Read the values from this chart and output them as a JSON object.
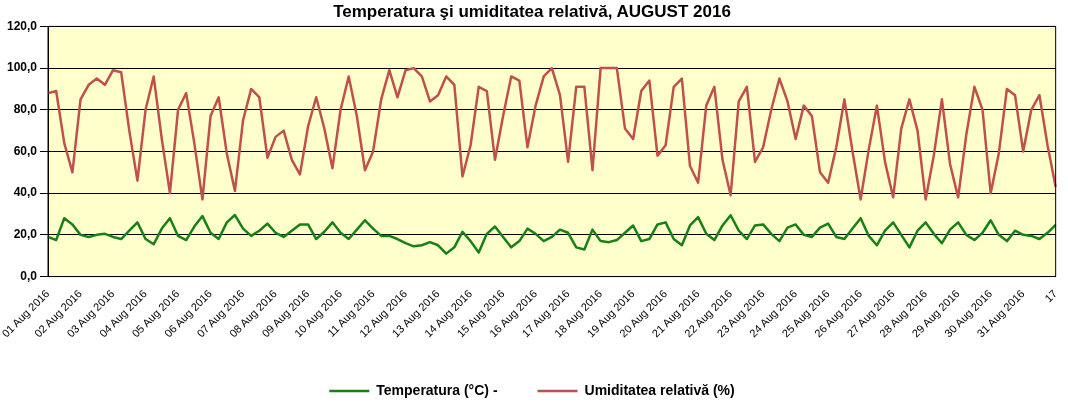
{
  "chart_data": {
    "type": "line",
    "title": "Temperatura şi umiditatea relativă, AUGUST 2016",
    "categories": [
      "01 Aug 2016",
      null,
      null,
      null,
      "02 Aug 2016",
      null,
      null,
      null,
      "03 Aug 2016",
      null,
      null,
      null,
      "04 Aug 2016",
      null,
      null,
      null,
      "05 Aug 2016",
      null,
      null,
      null,
      "06 Aug 2016",
      null,
      null,
      null,
      "07 Aug 2016",
      null,
      null,
      null,
      "08 Aug 2016",
      null,
      null,
      null,
      "09 Aug 2016",
      null,
      null,
      null,
      "10 Aug 2016",
      null,
      null,
      null,
      "11 Aug 2016",
      null,
      null,
      null,
      "12 Aug 2016",
      null,
      null,
      null,
      "13 Aug 2016",
      null,
      null,
      null,
      "14 Aug 2016",
      null,
      null,
      null,
      "15 Aug 2016",
      null,
      null,
      null,
      "16 Aug 2016",
      null,
      null,
      null,
      "17 Aug 2016",
      null,
      null,
      null,
      "18 Aug 2016",
      null,
      null,
      null,
      "19 Aug 2016",
      null,
      null,
      null,
      "20 Aug 2016",
      null,
      null,
      null,
      "21 Aug 2016",
      null,
      null,
      null,
      "22 Aug 2016",
      null,
      null,
      null,
      "23 Aug 2016",
      null,
      null,
      null,
      "24 Aug 2016",
      null,
      null,
      null,
      "25 Aug 2016",
      null,
      null,
      null,
      "26 Aug 2016",
      null,
      null,
      null,
      "27 Aug 2016",
      null,
      null,
      null,
      "28 Aug 2016",
      null,
      null,
      null,
      "29 Aug 2016",
      null,
      null,
      null,
      "30 Aug 2016",
      null,
      null,
      null,
      "31 Aug 2016",
      null,
      null,
      null,
      "17"
    ],
    "ylim": [
      0,
      120
    ],
    "yticks": [
      {
        "value": 0,
        "label": "0,0"
      },
      {
        "value": 20,
        "label": "20,0"
      },
      {
        "value": 40,
        "label": "40,0"
      },
      {
        "value": 60,
        "label": "60,0"
      },
      {
        "value": 80,
        "label": "80,0"
      },
      {
        "value": 100,
        "label": "100,0"
      },
      {
        "value": 120,
        "label": "120,0"
      }
    ],
    "grid": "y",
    "legend": "bottom",
    "marker": "none",
    "line_style": "solid",
    "series": [
      {
        "name": "Temperatura (°C) -",
        "color": "#178117",
        "values": [
          19,
          17.5,
          28,
          25,
          20,
          19,
          20,
          20.5,
          19,
          18,
          22,
          26,
          18,
          15.5,
          23,
          28,
          19.5,
          17.5,
          24,
          29,
          21,
          18,
          26,
          29.5,
          23,
          19.5,
          22,
          25.4,
          21,
          19,
          22,
          25,
          25,
          18,
          21.5,
          26,
          21,
          18,
          22.5,
          27,
          23,
          19.5,
          19.5,
          18,
          16,
          14.5,
          15,
          16.5,
          15,
          11,
          14,
          21.5,
          17,
          11.5,
          20.5,
          24,
          19,
          14,
          17,
          23,
          20.5,
          17,
          19,
          22.5,
          21,
          14,
          13,
          22.5,
          17,
          16.5,
          17.5,
          21,
          24.5,
          17,
          18,
          25,
          26,
          18,
          15,
          24.5,
          28.5,
          20.5,
          17.5,
          24.5,
          29.4,
          22,
          18,
          24.5,
          25,
          20.5,
          17,
          23.5,
          25,
          20,
          19,
          23.5,
          25.4,
          19,
          18,
          23,
          28,
          19.5,
          15,
          22,
          26,
          20,
          14,
          22,
          26,
          20.5,
          16,
          22.5,
          26,
          20,
          17.5,
          21,
          27,
          20,
          17,
          22,
          20,
          19.5,
          18,
          21,
          24.8
        ]
      },
      {
        "name": "Umiditatea relativă (%)",
        "color": "#c0504d",
        "values": [
          88,
          89,
          64,
          50,
          85,
          92,
          95,
          92,
          99,
          98,
          70,
          46,
          80,
          96,
          66,
          40,
          80,
          88,
          64,
          37,
          77,
          86,
          59,
          41,
          75,
          90,
          86,
          57,
          67,
          70,
          56,
          49,
          72,
          86,
          71,
          52,
          80,
          96,
          77,
          51,
          60,
          85,
          99,
          86,
          99,
          100,
          96,
          84,
          87,
          96,
          92,
          48,
          63,
          91,
          89,
          56,
          77,
          96,
          94,
          62,
          82,
          96,
          100,
          87,
          55,
          91,
          91,
          51,
          100,
          100,
          100,
          71,
          66,
          89,
          94,
          58,
          63,
          91,
          95,
          53,
          45,
          82,
          91,
          56,
          39,
          84,
          91,
          55,
          62,
          80,
          95,
          84,
          66,
          82,
          77,
          50,
          45,
          62,
          85,
          60,
          37,
          61,
          82,
          55,
          38,
          71,
          85,
          70,
          37,
          58,
          85,
          54,
          38,
          68,
          91,
          80,
          40,
          59,
          90,
          87,
          60,
          80,
          87,
          63,
          43
        ]
      }
    ]
  }
}
